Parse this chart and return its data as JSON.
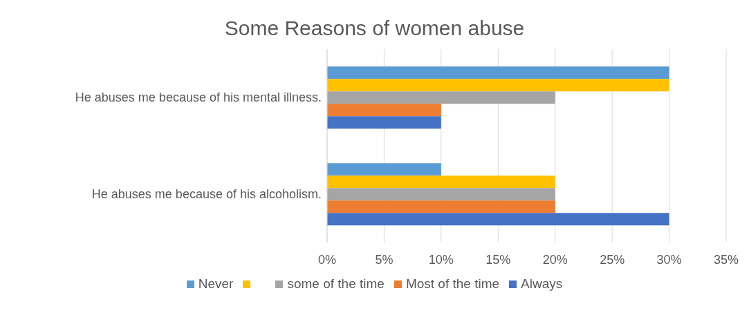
{
  "chart_data": {
    "type": "bar",
    "orientation": "horizontal",
    "title": "Some Reasons of women abuse",
    "categories": [
      "He abuses me because of his mental illness.",
      "He abuses me because of his alcoholism."
    ],
    "series": [
      {
        "name": "Never",
        "color": "#5b9bd5",
        "values": [
          30,
          10
        ]
      },
      {
        "color": "#ffc000",
        "values": [
          30,
          20
        ]
      },
      {
        "name": "some of the time",
        "color": "#a5a5a5",
        "values": [
          20,
          20
        ]
      },
      {
        "name": "Most of the time",
        "color": "#ed7d31",
        "values": [
          10,
          20
        ]
      },
      {
        "name": "Always",
        "color": "#4472c4",
        "values": [
          10,
          30
        ]
      }
    ],
    "xlim": [
      0,
      35
    ],
    "xticks": [
      {
        "value": 0,
        "label": "0%"
      },
      {
        "value": 5,
        "label": "5%"
      },
      {
        "value": 10,
        "label": "10%"
      },
      {
        "value": 15,
        "label": "15%"
      },
      {
        "value": 20,
        "label": "20%"
      },
      {
        "value": 25,
        "label": "25%"
      },
      {
        "value": 30,
        "label": "30%"
      },
      {
        "value": 35,
        "label": "35%"
      }
    ],
    "grid": "x",
    "legend": "bottom"
  }
}
